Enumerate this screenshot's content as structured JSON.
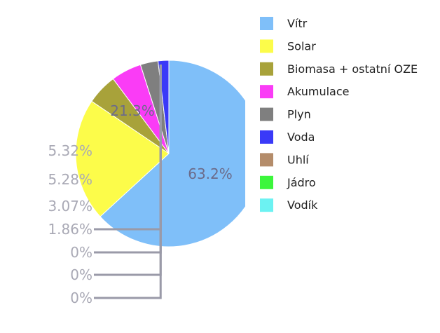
{
  "chart_data": {
    "type": "pie",
    "title": "",
    "unit": "%",
    "slices": [
      {
        "label": "Vítr",
        "value": 63.2,
        "display": "63.2%",
        "color": "#7fbff9"
      },
      {
        "label": "Solar",
        "value": 21.3,
        "display": "21.3%",
        "color": "#fcfc4a"
      },
      {
        "label": "Biomasa + ostatní OZE",
        "value": 5.32,
        "display": "5.32%",
        "color": "#a8a23a"
      },
      {
        "label": "Akumulace",
        "value": 5.28,
        "display": "5.28%",
        "color": "#fa3cf6"
      },
      {
        "label": "Plyn",
        "value": 3.07,
        "display": "3.07%",
        "color": "#7f7f7f"
      },
      {
        "label": "Voda",
        "value": 1.86,
        "display": "1.86%",
        "color": "#3a3af8"
      },
      {
        "label": "Uhlí",
        "value": 0,
        "display": "0%",
        "color": "#b48c6a"
      },
      {
        "label": "Jádro",
        "value": 0,
        "display": "0%",
        "color": "#3cf63c"
      },
      {
        "label": "Vodík",
        "value": 0,
        "display": "0%",
        "color": "#6cf2f2"
      }
    ],
    "legend_position": "right"
  }
}
